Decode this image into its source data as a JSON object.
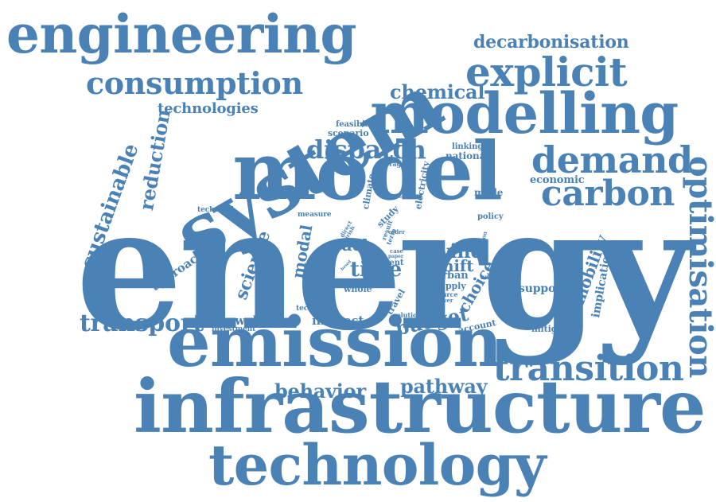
{
  "colors": {
    "word": "#4a82b6",
    "background": "#ffffff"
  },
  "words": {
    "energy": "energy",
    "model": "model",
    "system": "system",
    "infrastructure": "infrastructure",
    "emission": "emission",
    "technology": "technology",
    "modelling": "modelling",
    "engineering": "engineering",
    "explicit": "explicit",
    "demand": "demand",
    "carbon": "carbon",
    "transition": "transition",
    "consumption": "consumption",
    "decarbonisation": "decarbonisation",
    "optimisation": "optimisation",
    "dispatch": "dispatch",
    "transport": "transport",
    "chemical": "chemical",
    "sustainable": "sustainable",
    "reduction": "reduction",
    "technologies": "technologies",
    "behavior": "behavior",
    "pathway": "pathway",
    "budget": "budget",
    "time": "time",
    "wind": "wind",
    "shift": "shift",
    "fuel": "fuel",
    "science": "science",
    "modal": "modal",
    "mobility": "mobility",
    "choice": "choice",
    "renewable": "renewable",
    "indirect": "indirect",
    "approach": "approach",
    "implication": "implication",
    "economic": "economic",
    "national": "national",
    "linking": "linking",
    "feasibility": "feasibility",
    "scenario": "scenario",
    "storage": "storage",
    "electricity": "electricity",
    "climate": "climate",
    "mode": "mode",
    "policy": "policy",
    "support": "support",
    "mitigating": "mitigating",
    "account": "account",
    "technical": "technical",
    "measure": "measure",
    "study": "study",
    "travel": "travel",
    "current": "current",
    "whole": "whole",
    "urban": "urban",
    "supply": "supply",
    "source": "source",
    "power": "power",
    "solution": "solution",
    "techno": "techno",
    "investment": "investment",
    "analyse": "analyse",
    "result": "result",
    "term": "term",
    "case": "case",
    "paper": "paper",
    "order": "order",
    "many": "many",
    "option": "option",
    "direct": "direct",
    "irish": "irish",
    "house": "house",
    "based": "based"
  }
}
